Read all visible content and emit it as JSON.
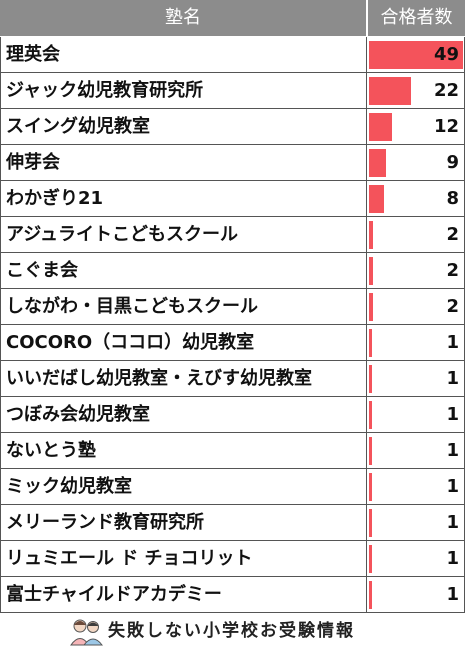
{
  "chart_data": {
    "type": "bar",
    "orientation": "horizontal",
    "columns": {
      "name": "塾名",
      "value": "合格者数"
    },
    "categories": [
      "理英会",
      "ジャック幼児教育研究所",
      "スイング幼児教室",
      "伸芽会",
      "わかぎり21",
      "アジュライトこどもスクール",
      "こぐま会",
      "しながわ・目黒こどもスクール",
      "COCORO（ココロ）幼児教室",
      "いいだばし幼児教室・えびす幼児教室",
      "つぼみ会幼児教室",
      "ないとう塾",
      "ミック幼児教室",
      "メリーランド教育研究所",
      "リュミエール ド チョコリット",
      "富士チャイルドアカデミー"
    ],
    "values": [
      49,
      22,
      12,
      9,
      8,
      2,
      2,
      2,
      1,
      1,
      1,
      1,
      1,
      1,
      1,
      1
    ],
    "xlim": [
      0,
      49
    ],
    "bar_color": "#f4535b",
    "header_color": "#8c8c8c"
  },
  "footer": {
    "text": "失敗しない小学校お受験情報"
  }
}
